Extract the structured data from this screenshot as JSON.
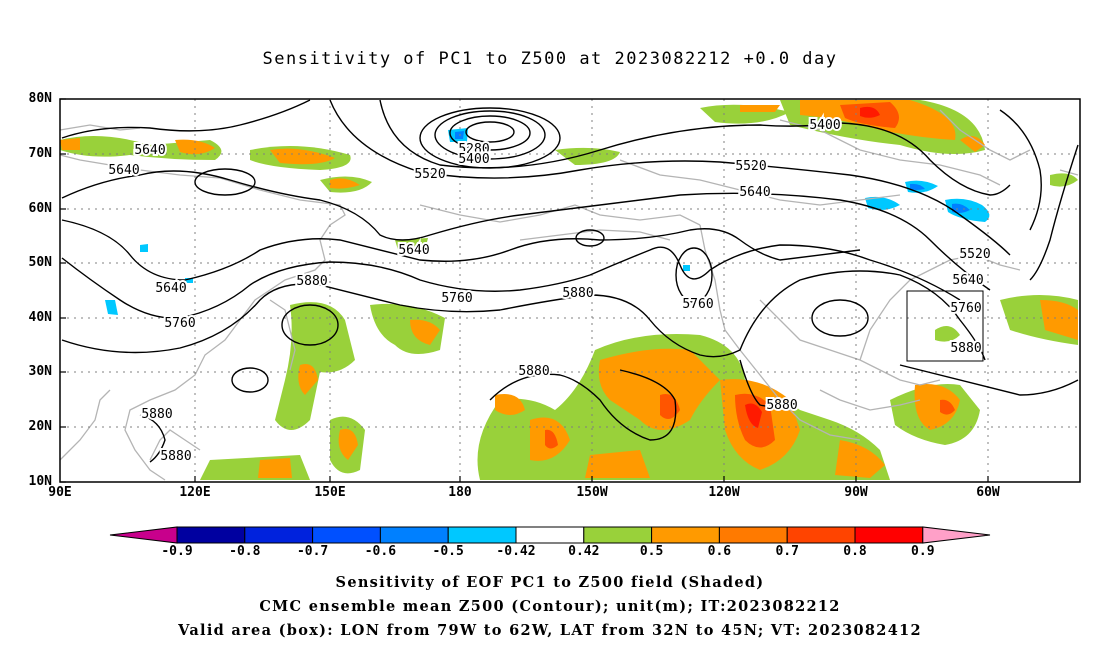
{
  "title": "Sensitivity of PC1 to Z500 at 2023082212 +0.0 day",
  "map": {
    "lat_labels": [
      "80N",
      "70N",
      "60N",
      "50N",
      "40N",
      "30N",
      "20N",
      "10N"
    ],
    "lon_labels": [
      "90E",
      "120E",
      "150E",
      "180",
      "150W",
      "120W",
      "90W",
      "60W"
    ],
    "contour_labels": [
      "5640",
      "5640",
      "5640",
      "5760",
      "5880",
      "5880",
      "5880",
      "5280",
      "5400",
      "5520",
      "5640",
      "5760",
      "5880",
      "5880",
      "5760",
      "5520",
      "5640",
      "5400",
      "5520",
      "5640",
      "5760",
      "5880",
      "5880"
    ],
    "valid_box": {
      "lon_west": -79,
      "lon_east": -62,
      "lat_south": 32,
      "lat_north": 45
    },
    "shading_colors": {
      "green": "#99d13a",
      "orange": "#ff9a00",
      "dark_orange": "#ff6600",
      "red": "#ff2a00",
      "cyan": "#00c8ff",
      "blue": "#0080ff"
    }
  },
  "colorbar": {
    "labels": [
      "-0.9",
      "-0.8",
      "-0.7",
      "-0.6",
      "-0.5",
      "-0.42",
      "0.42",
      "0.5",
      "0.6",
      "0.7",
      "0.8",
      "0.9"
    ],
    "colors": [
      "#0000a0",
      "#0022dd",
      "#0050ff",
      "#0080ff",
      "#00c8ff",
      "#ffffff",
      "#99d13a",
      "#ff9a00",
      "#ff7a00",
      "#ff4400",
      "#ff0000"
    ],
    "left_arrow_color": "#c8008c",
    "right_arrow_color": "#ffa0c8"
  },
  "caption": {
    "line1": "Sensitivity of EOF PC1 to Z500 field (Shaded)",
    "line2": "CMC ensemble mean Z500 (Contour); unit(m); IT:2023082212",
    "line3": "Valid area (box): LON from 79W to 62W, LAT from 32N to 45N; VT: 2023082412"
  }
}
